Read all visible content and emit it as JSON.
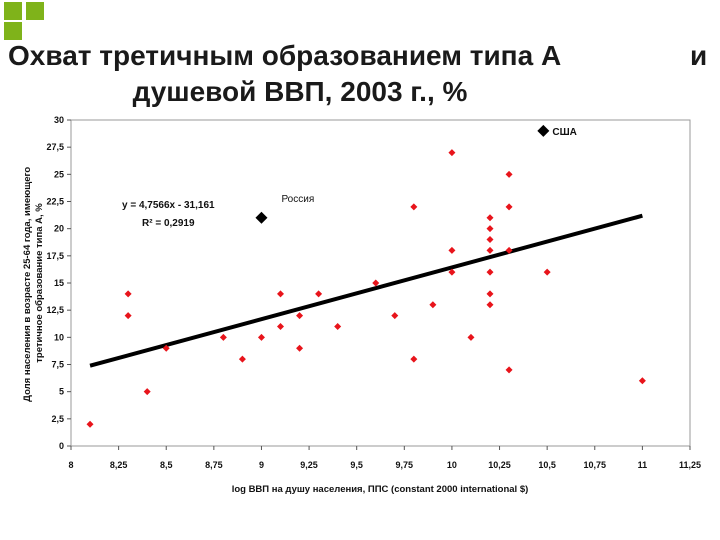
{
  "slide": {
    "title_line1": "Охват третичным образованием типа А",
    "title_line1_end": "и",
    "title_line2": "душевой ВВП, 2003 г., %"
  },
  "chart_data": {
    "type": "scatter",
    "xlabel": "log ВВП на душу населения, ППС (constant 2000 international $)",
    "ylabel": "Доля населения в возрасте 25-64 года, имеющего третичное образование типа А, %",
    "xlim": [
      8,
      11.25
    ],
    "ylim": [
      0,
      30
    ],
    "xticks": [
      "8",
      "8,25",
      "8,5",
      "8,75",
      "9",
      "9,25",
      "9,5",
      "9,75",
      "10",
      "10,25",
      "10,5",
      "10,75",
      "11",
      "11,25"
    ],
    "yticks": [
      "0",
      "2,5",
      "5",
      "7,5",
      "10",
      "12,5",
      "15",
      "17,5",
      "20",
      "22,5",
      "25",
      "27,5",
      "30"
    ],
    "grid": false,
    "colors": {
      "points": "#e8141b",
      "highlight": "#000000",
      "trend": "#000000",
      "bullet": "#7fb31a"
    },
    "points": [
      [
        8.1,
        2
      ],
      [
        8.3,
        14
      ],
      [
        8.3,
        12
      ],
      [
        8.4,
        5
      ],
      [
        8.5,
        9
      ],
      [
        8.8,
        10
      ],
      [
        8.9,
        8
      ],
      [
        9.0,
        10
      ],
      [
        9.1,
        14
      ],
      [
        9.1,
        11
      ],
      [
        9.2,
        12
      ],
      [
        9.2,
        9
      ],
      [
        9.3,
        14
      ],
      [
        9.4,
        11
      ],
      [
        9.6,
        15
      ],
      [
        9.7,
        12
      ],
      [
        9.8,
        22
      ],
      [
        9.8,
        8
      ],
      [
        9.9,
        13
      ],
      [
        10.0,
        27
      ],
      [
        10.0,
        18
      ],
      [
        10.0,
        16
      ],
      [
        10.1,
        10
      ],
      [
        10.2,
        21
      ],
      [
        10.2,
        20
      ],
      [
        10.2,
        19
      ],
      [
        10.2,
        18
      ],
      [
        10.2,
        16
      ],
      [
        10.2,
        14
      ],
      [
        10.2,
        13
      ],
      [
        10.3,
        25
      ],
      [
        10.3,
        22
      ],
      [
        10.3,
        18
      ],
      [
        10.3,
        7
      ],
      [
        10.5,
        16
      ],
      [
        11.0,
        6
      ]
    ],
    "highlighted": [
      {
        "label": "США",
        "x": 10.48,
        "y": 29
      },
      {
        "label": "Россия",
        "x": 9.0,
        "y": 21
      }
    ],
    "trendline": {
      "x": [
        8.1,
        11.0
      ],
      "y": [
        7.39,
        21.19
      ]
    },
    "equation": "y = 4,7566x - 31,161",
    "r2": "R² = 0,2919"
  }
}
